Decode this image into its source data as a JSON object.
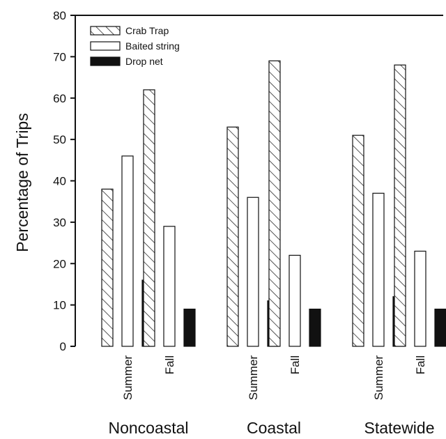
{
  "chart_data": {
    "type": "bar",
    "ylabel": "Percentage of Trips",
    "ylim": [
      0,
      80
    ],
    "yticks": [
      0,
      10,
      20,
      30,
      40,
      50,
      60,
      70,
      80
    ],
    "groups": [
      {
        "label": "Noncoastal",
        "categories": [
          {
            "label": "Summer",
            "values": [
              38,
              46,
              16
            ]
          },
          {
            "label": "Fall",
            "values": [
              62,
              29,
              9
            ]
          }
        ]
      },
      {
        "label": "Coastal",
        "categories": [
          {
            "label": "Summer",
            "values": [
              53,
              36,
              11
            ]
          },
          {
            "label": "Fall",
            "values": [
              69,
              22,
              9
            ]
          }
        ]
      },
      {
        "label": "Statewide",
        "categories": [
          {
            "label": "Summer",
            "values": [
              51,
              37,
              12
            ]
          },
          {
            "label": "Fall",
            "values": [
              68,
              23,
              9
            ]
          }
        ]
      }
    ],
    "series": [
      {
        "name": "Crab Trap",
        "fill": "hatch"
      },
      {
        "name": "Baited string",
        "fill": "#ffffff"
      },
      {
        "name": "Drop net",
        "fill": "#111111"
      }
    ],
    "legend_position": "top-left",
    "grid": false
  }
}
